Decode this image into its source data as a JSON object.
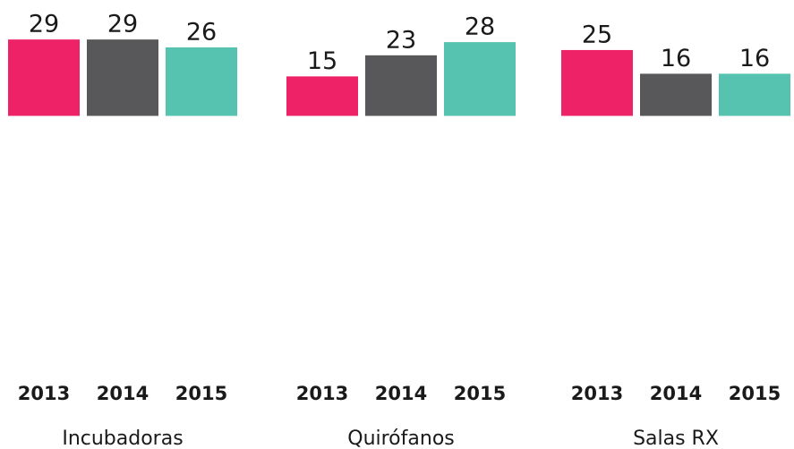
{
  "chart_data": {
    "type": "bar",
    "categories": [
      "Incubadoras",
      "Quirófanos",
      "Salas RX"
    ],
    "series": [
      {
        "name": "2013",
        "color": "#ee2266",
        "values": [
          29,
          15,
          25
        ]
      },
      {
        "name": "2014",
        "color": "#58585a",
        "values": [
          29,
          23,
          16
        ]
      },
      {
        "name": "2015",
        "color": "#56c2b0",
        "values": [
          26,
          28,
          16
        ]
      }
    ],
    "ylim": [
      -100,
      44
    ]
  }
}
